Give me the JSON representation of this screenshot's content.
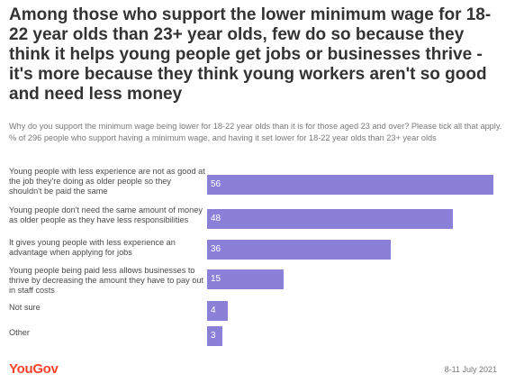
{
  "header": {
    "title": "Among those who support the lower minimum wage for 18-22 year olds than 23+ year olds, few do so because they think it helps young people get jobs or businesses thrive - it's more because they think young workers aren't so good and need less money",
    "subtitle": "Why do you support the minimum wage being lower for 18-22 year olds than it is for those aged 23 and over? Please tick all that apply. % of 296 people who support having a minimum wage, and having it set lower for 18-22 year olds than 23+ year olds"
  },
  "chart_data": {
    "type": "bar",
    "orientation": "horizontal",
    "categories": [
      "Young people with less experience are not as good at the job they're doing as older people so they shouldn't be paid the same",
      "Young people don't need the same amount of money as older people as they have less responsibilities",
      "It gives young people with less experience an advantage when applying for jobs",
      "Young people being paid less allows businesses to thrive by decreasing the amount they have to pay out in staff costs",
      "Not sure",
      "Other"
    ],
    "values": [
      56,
      48,
      36,
      15,
      4,
      3
    ],
    "value_labels": [
      "56",
      "48",
      "36",
      "15",
      "4",
      "3"
    ],
    "xlim": [
      0,
      56
    ],
    "grid": false,
    "bar_color": "#8a80d8"
  },
  "footer": {
    "brand": "YouGov",
    "brand_color": "#ff412c",
    "date": "8-11 July 2021"
  }
}
